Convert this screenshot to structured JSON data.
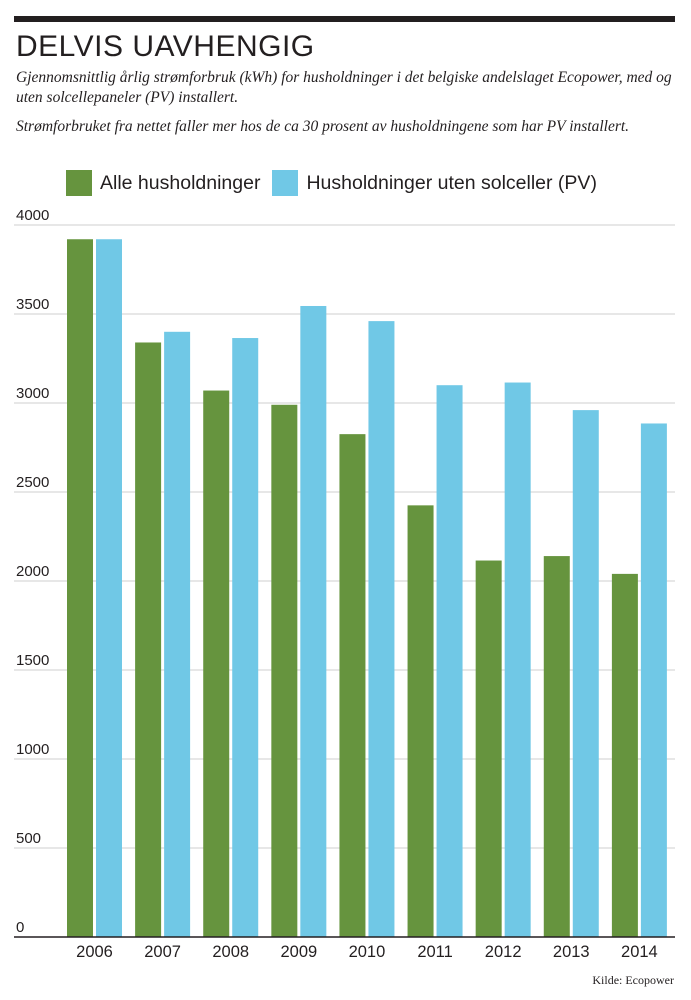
{
  "header": {
    "title": "DELVIS UAVHENGIG",
    "subtitle_1": "Gjennomsnittlig årlig strømforbruk (kWh) for husholdninger i det belgiske andelslaget Ecopower, med og uten solcellepaneler (PV) installert.",
    "subtitle_2": "Strømforbruket fra nettet faller mer hos de ca 30 prosent av husholdningene som har PV installert."
  },
  "source": "Kilde: Ecopower",
  "chart_data": {
    "type": "bar",
    "categories": [
      "2006",
      "2007",
      "2008",
      "2009",
      "2010",
      "2011",
      "2012",
      "2013",
      "2014"
    ],
    "series": [
      {
        "name": "Alle husholdninger",
        "color": "#66943e",
        "values": [
          3920,
          3340,
          3070,
          2990,
          2825,
          2425,
          2115,
          2140,
          2040
        ]
      },
      {
        "name": "Husholdninger uten solceller (PV)",
        "color": "#70c8e6",
        "values": [
          3920,
          3400,
          3365,
          3545,
          3460,
          3100,
          3115,
          2960,
          2885
        ]
      }
    ],
    "ylim": [
      0,
      4000
    ],
    "yticks": [
      0,
      500,
      1000,
      1500,
      2000,
      2500,
      3000,
      3500,
      4000
    ],
    "grid": true,
    "legend": "top-left"
  }
}
